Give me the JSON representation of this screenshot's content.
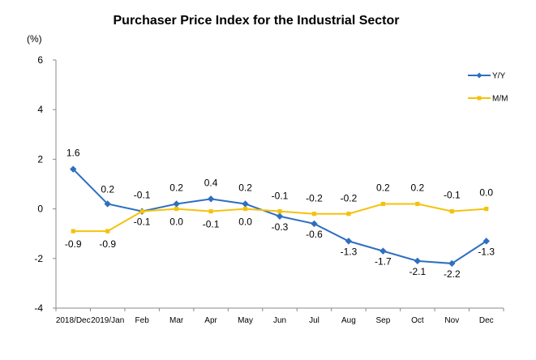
{
  "chart_data": {
    "type": "line",
    "title": "Purchaser Price Index for the Industrial  Sector",
    "unit_label": "(%)",
    "categories": [
      "2018/Dec",
      "2019/Jan",
      "Feb",
      "Mar",
      "Apr",
      "May",
      "Jun",
      "Jul",
      "Aug",
      "Sep",
      "Oct",
      "Nov",
      "Dec"
    ],
    "series": [
      {
        "name": "Y/Y",
        "color": "#2e6fc0",
        "marker": "diamond",
        "values": [
          1.6,
          0.2,
          -0.1,
          0.2,
          0.4,
          0.2,
          -0.3,
          -0.6,
          -1.3,
          -1.7,
          -2.1,
          -2.2,
          -1.3
        ],
        "labels": [
          "1.6",
          "0.2",
          "-0.1",
          "0.2",
          "0.4",
          "0.2",
          "-0.3",
          "-0.6",
          "-1.3",
          "-1.7",
          "-2.1",
          "-2.2",
          "-1.3"
        ]
      },
      {
        "name": "M/M",
        "color": "#f4c20d",
        "marker": "square",
        "values": [
          -0.9,
          -0.9,
          -0.1,
          0.0,
          -0.1,
          0.0,
          -0.1,
          -0.2,
          -0.2,
          0.2,
          0.2,
          -0.1,
          0.0
        ],
        "labels": [
          "-0.9",
          "-0.9",
          "-0.1",
          "0.0",
          "-0.1",
          "0.0",
          "-0.1",
          "-0.2",
          "-0.2",
          "0.2",
          "0.2",
          "-0.1",
          "0.0"
        ]
      }
    ],
    "yticks": [
      6,
      4,
      2,
      0,
      -2,
      -4
    ],
    "ylim": [
      -4,
      6
    ],
    "grid": false,
    "legend_position": "top-right"
  }
}
